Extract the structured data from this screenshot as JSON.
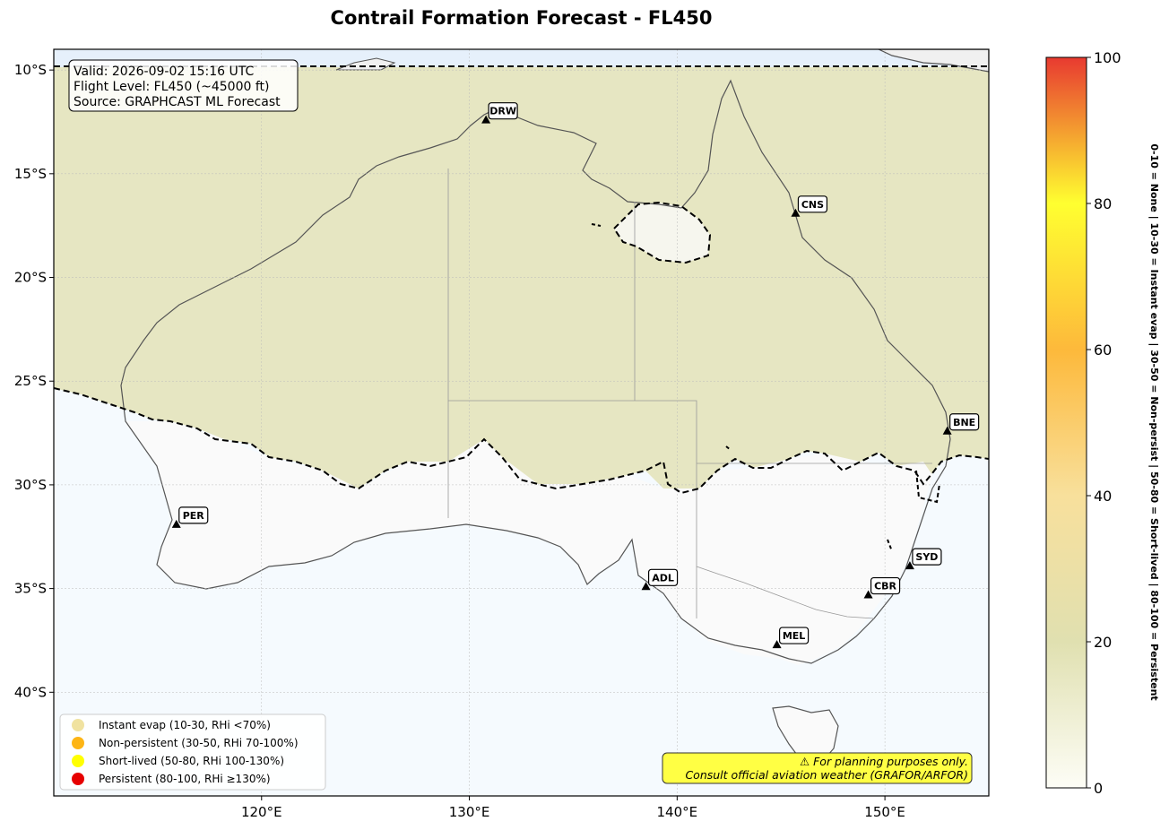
{
  "title": "Contrail Formation Forecast - FL450",
  "info_box": {
    "valid": "Valid: 2026-09-02 15:16 UTC",
    "flight_level": "Flight Level: FL450 (~45000 ft)",
    "source": "Source: GRAPHCAST ML Forecast"
  },
  "lon_ticks": [
    {
      "value": 120,
      "label": "120°E"
    },
    {
      "value": 130,
      "label": "130°E"
    },
    {
      "value": 140,
      "label": "140°E"
    },
    {
      "value": 150,
      "label": "150°E"
    }
  ],
  "lat_ticks": [
    {
      "value": -10,
      "label": "10°S"
    },
    {
      "value": -15,
      "label": "15°S"
    },
    {
      "value": -20,
      "label": "20°S"
    },
    {
      "value": -25,
      "label": "25°S"
    },
    {
      "value": -30,
      "label": "30°S"
    },
    {
      "value": -35,
      "label": "35°S"
    },
    {
      "value": -40,
      "label": "40°S"
    }
  ],
  "extent": {
    "lon_min": 110,
    "lon_max": 155,
    "lat_min": -45,
    "lat_max": -9
  },
  "airports": [
    {
      "code": "DRW",
      "lon": 130.8,
      "lat": -12.4
    },
    {
      "code": "CNS",
      "lon": 145.7,
      "lat": -16.9
    },
    {
      "code": "BNE",
      "lon": 153.0,
      "lat": -27.4
    },
    {
      "code": "PER",
      "lon": 115.9,
      "lat": -31.9
    },
    {
      "code": "SYD",
      "lon": 151.2,
      "lat": -33.9
    },
    {
      "code": "ADL",
      "lon": 138.5,
      "lat": -34.9
    },
    {
      "code": "CBR",
      "lon": 149.2,
      "lat": -35.3
    },
    {
      "code": "MEL",
      "lon": 144.8,
      "lat": -37.7
    }
  ],
  "legend": [
    {
      "label": "Instant evap (10-30, RHi <70%)",
      "color": "#f0e2a0"
    },
    {
      "label": "Non-persistent (30-50, RHi 70-100%)",
      "color": "#fdb515"
    },
    {
      "label": "Short-lived (50-80, RHi 100-130%)",
      "color": "#ffff00"
    },
    {
      "label": "Persistent (80-100, RHi ≥130%)",
      "color": "#e60000"
    }
  ],
  "warning": {
    "line1": "⚠ For planning purposes only.",
    "line2": "Consult official aviation weather (GRAFOR/ARFOR)"
  },
  "colorbar": {
    "ticks": [
      {
        "value": 0,
        "label": "0"
      },
      {
        "value": 20,
        "label": "20"
      },
      {
        "value": 40,
        "label": "40"
      },
      {
        "value": 60,
        "label": "60"
      },
      {
        "value": 80,
        "label": "80"
      },
      {
        "value": 100,
        "label": "100"
      }
    ],
    "label": "0-10 = None  |  10-30 = Instant evap  |  30-50 = Non-persist  |  50-80 = Short-lived  |  80-100 = Persistent",
    "colors": [
      "#fdfdf6",
      "#e0e0b0",
      "#f8e09c",
      "#fdb93b",
      "#ffff30",
      "#e83a30"
    ]
  },
  "colors": {
    "land_fill": "#e8e8c0",
    "ocean": "#f3f8fd",
    "outside": "#fafafa"
  }
}
